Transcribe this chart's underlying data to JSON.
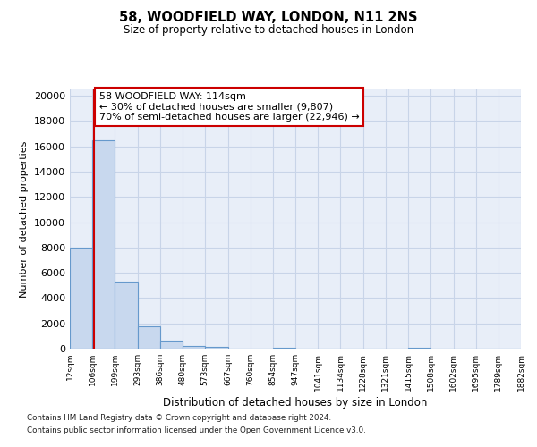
{
  "title1": "58, WOODFIELD WAY, LONDON, N11 2NS",
  "title2": "Size of property relative to detached houses in London",
  "xlabel": "Distribution of detached houses by size in London",
  "ylabel": "Number of detached properties",
  "bins": [
    12,
    106,
    199,
    293,
    386,
    480,
    573,
    667,
    760,
    854,
    947,
    1041,
    1134,
    1228,
    1321,
    1415,
    1508,
    1602,
    1695,
    1789,
    1882
  ],
  "bar_heights": [
    8000,
    16500,
    5300,
    1800,
    620,
    230,
    120,
    0,
    0,
    80,
    0,
    0,
    0,
    0,
    0,
    70,
    0,
    0,
    0,
    0
  ],
  "bar_color": "#c8d8ee",
  "bar_edge_color": "#6699cc",
  "grid_color": "#c8d4e8",
  "property_size": 114,
  "vline_color": "#cc0000",
  "annotation_text": "58 WOODFIELD WAY: 114sqm\n← 30% of detached houses are smaller (9,807)\n70% of semi-detached houses are larger (22,946) →",
  "annotation_box_facecolor": "#ffffff",
  "annotation_box_edgecolor": "#cc0000",
  "ylim": [
    0,
    20500
  ],
  "yticks": [
    0,
    2000,
    4000,
    6000,
    8000,
    10000,
    12000,
    14000,
    16000,
    18000,
    20000
  ],
  "footer1": "Contains HM Land Registry data © Crown copyright and database right 2024.",
  "footer2": "Contains public sector information licensed under the Open Government Licence v3.0.",
  "bg_color": "#e8eef8"
}
